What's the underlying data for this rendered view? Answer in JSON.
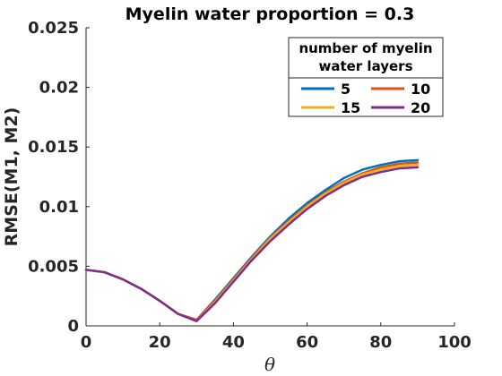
{
  "chart_data": {
    "type": "line",
    "title": "Myelin water proportion = 0.3",
    "xlabel": "θ",
    "ylabel": "RMSE(M1, M2)",
    "xlim": [
      0,
      100
    ],
    "ylim": [
      0,
      0.025
    ],
    "xticks": [
      0,
      20,
      40,
      60,
      80,
      100
    ],
    "xtick_labels": [
      "0",
      "20",
      "40",
      "60",
      "80",
      "100"
    ],
    "yticks": [
      0,
      0.005,
      0.01,
      0.015,
      0.02,
      0.025
    ],
    "ytick_labels": [
      "0",
      "0.005",
      "0.01",
      "0.015",
      "0.02",
      "0.025"
    ],
    "grid": false,
    "legend": {
      "title_lines": [
        "number of myelin",
        "water layers"
      ],
      "position": "top-right",
      "columns": 2
    },
    "x": [
      0,
      5,
      10,
      15,
      20,
      25,
      30,
      35,
      40,
      45,
      50,
      55,
      60,
      65,
      70,
      75,
      80,
      85,
      90
    ],
    "series": [
      {
        "name": "5",
        "color": "#0072BD",
        "values": [
          0.0047,
          0.0045,
          0.0039,
          0.0031,
          0.0021,
          0.001,
          0.0005,
          0.0022,
          0.004,
          0.0058,
          0.0075,
          0.009,
          0.0103,
          0.0114,
          0.0124,
          0.0131,
          0.0135,
          0.0138,
          0.0139
        ]
      },
      {
        "name": "10",
        "color": "#D95319",
        "values": [
          0.0047,
          0.0045,
          0.0039,
          0.0031,
          0.0021,
          0.001,
          0.0005,
          0.0021,
          0.0039,
          0.0057,
          0.0074,
          0.0088,
          0.0101,
          0.0112,
          0.0121,
          0.0128,
          0.0133,
          0.0136,
          0.0137
        ]
      },
      {
        "name": "15",
        "color": "#EDB120",
        "values": [
          0.0047,
          0.0045,
          0.0039,
          0.0031,
          0.0021,
          0.001,
          0.0004,
          0.002,
          0.0038,
          0.0056,
          0.0073,
          0.0087,
          0.01,
          0.0111,
          0.012,
          0.0127,
          0.0131,
          0.0134,
          0.0135
        ]
      },
      {
        "name": "20",
        "color": "#7E2F8E",
        "values": [
          0.0047,
          0.0045,
          0.0039,
          0.0031,
          0.0021,
          0.001,
          0.0004,
          0.0019,
          0.0037,
          0.0055,
          0.0071,
          0.0085,
          0.0098,
          0.0109,
          0.0118,
          0.0125,
          0.0129,
          0.0132,
          0.0133
        ]
      }
    ]
  }
}
